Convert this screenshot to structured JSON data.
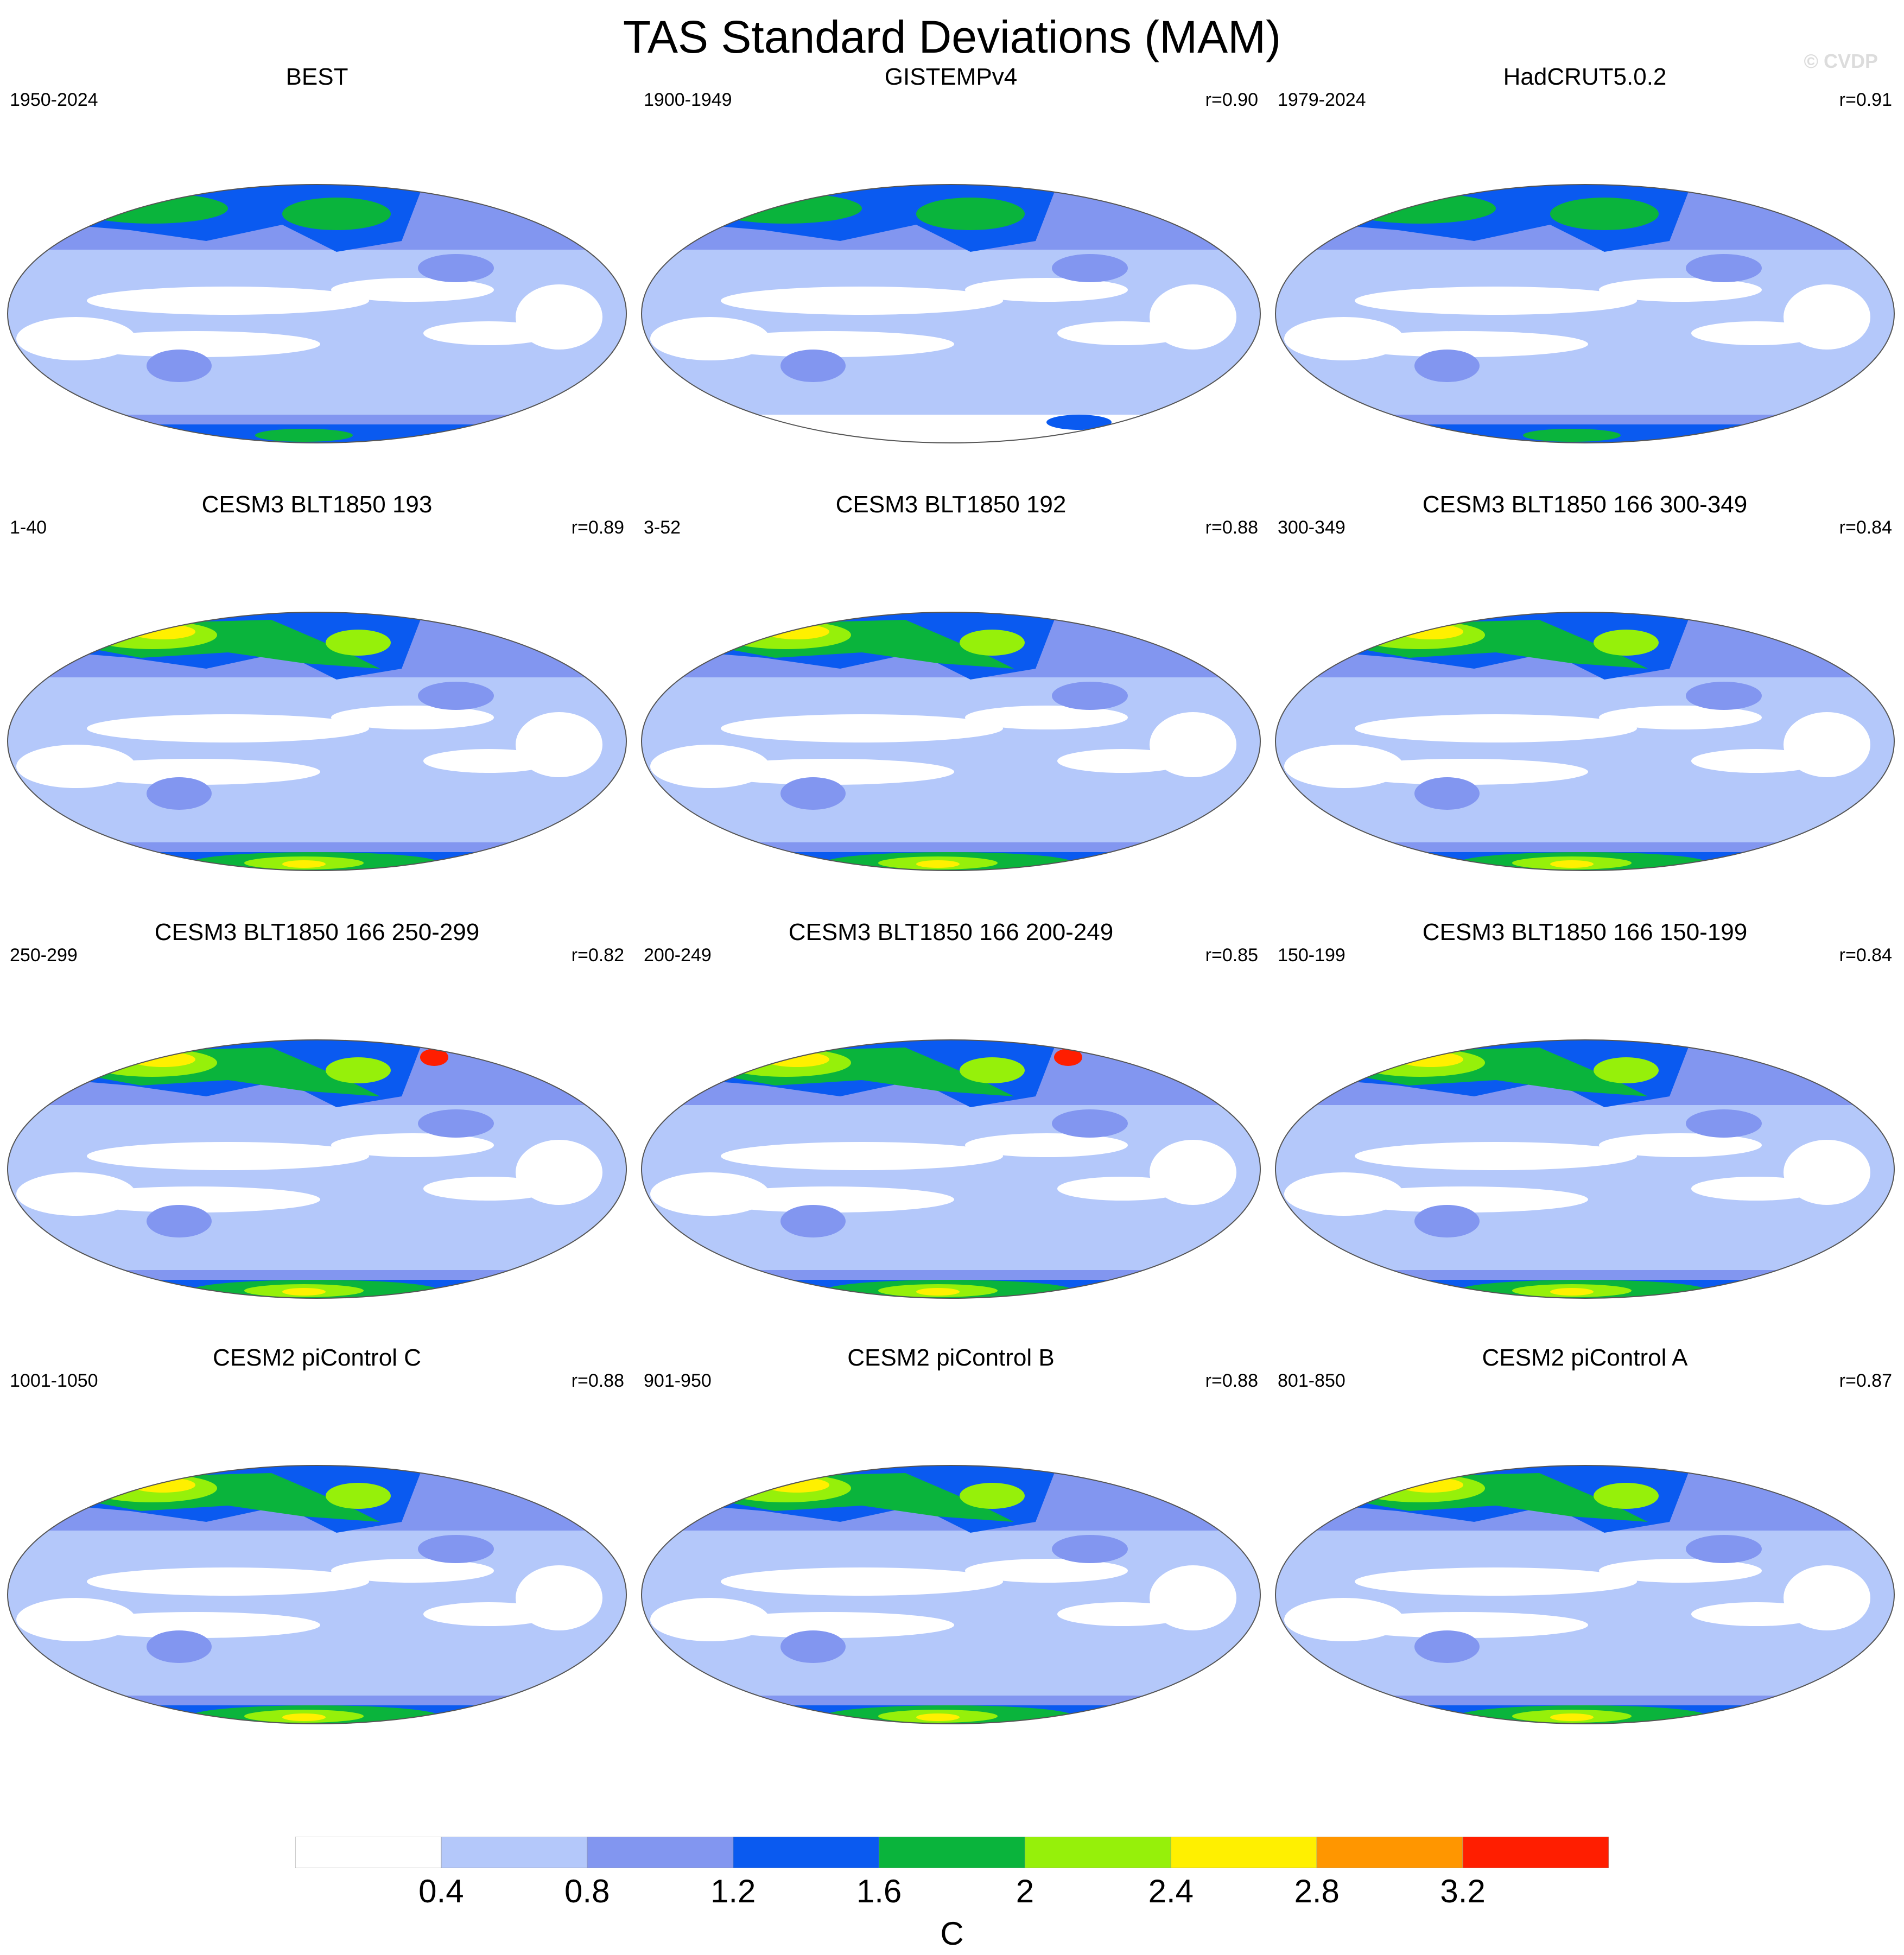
{
  "title": "TAS Standard Deviations (MAM)",
  "watermark": "© CVDP",
  "panels": [
    {
      "title": "BEST",
      "period": "1950-2024",
      "r": ""
    },
    {
      "title": "GISTEMPv4",
      "period": "1900-1949",
      "r": "r=0.90"
    },
    {
      "title": "HadCRUT5.0.2",
      "period": "1979-2024",
      "r": "r=0.91"
    },
    {
      "title": "CESM3 BLT1850 193",
      "period": "1-40",
      "r": "r=0.89"
    },
    {
      "title": "CESM3 BLT1850 192",
      "period": "3-52",
      "r": "r=0.88"
    },
    {
      "title": "CESM3 BLT1850 166 300-349",
      "period": "300-349",
      "r": "r=0.84"
    },
    {
      "title": "CESM3 BLT1850 166 250-299",
      "period": "250-299",
      "r": "r=0.82"
    },
    {
      "title": "CESM3 BLT1850 166 200-249",
      "period": "200-249",
      "r": "r=0.85"
    },
    {
      "title": "CESM3 BLT1850 166 150-199",
      "period": "150-199",
      "r": "r=0.84"
    },
    {
      "title": "CESM2 piControl C",
      "period": "1001-1050",
      "r": "r=0.88"
    },
    {
      "title": "CESM2 piControl B",
      "period": "901-950",
      "r": "r=0.88"
    },
    {
      "title": "CESM2 piControl A",
      "period": "801-850",
      "r": "r=0.87"
    }
  ],
  "colorbar": {
    "labels": [
      "0.4",
      "0.8",
      "1.2",
      "1.6",
      "2",
      "2.4",
      "2.8",
      "3.2"
    ],
    "units": "C",
    "colors": [
      "#ffffff",
      "#b4c8fa",
      "#8296f0",
      "#0a5af0",
      "#0ab43c",
      "#96f00a",
      "#fff000",
      "#ff9600",
      "#ff1e00"
    ]
  }
}
